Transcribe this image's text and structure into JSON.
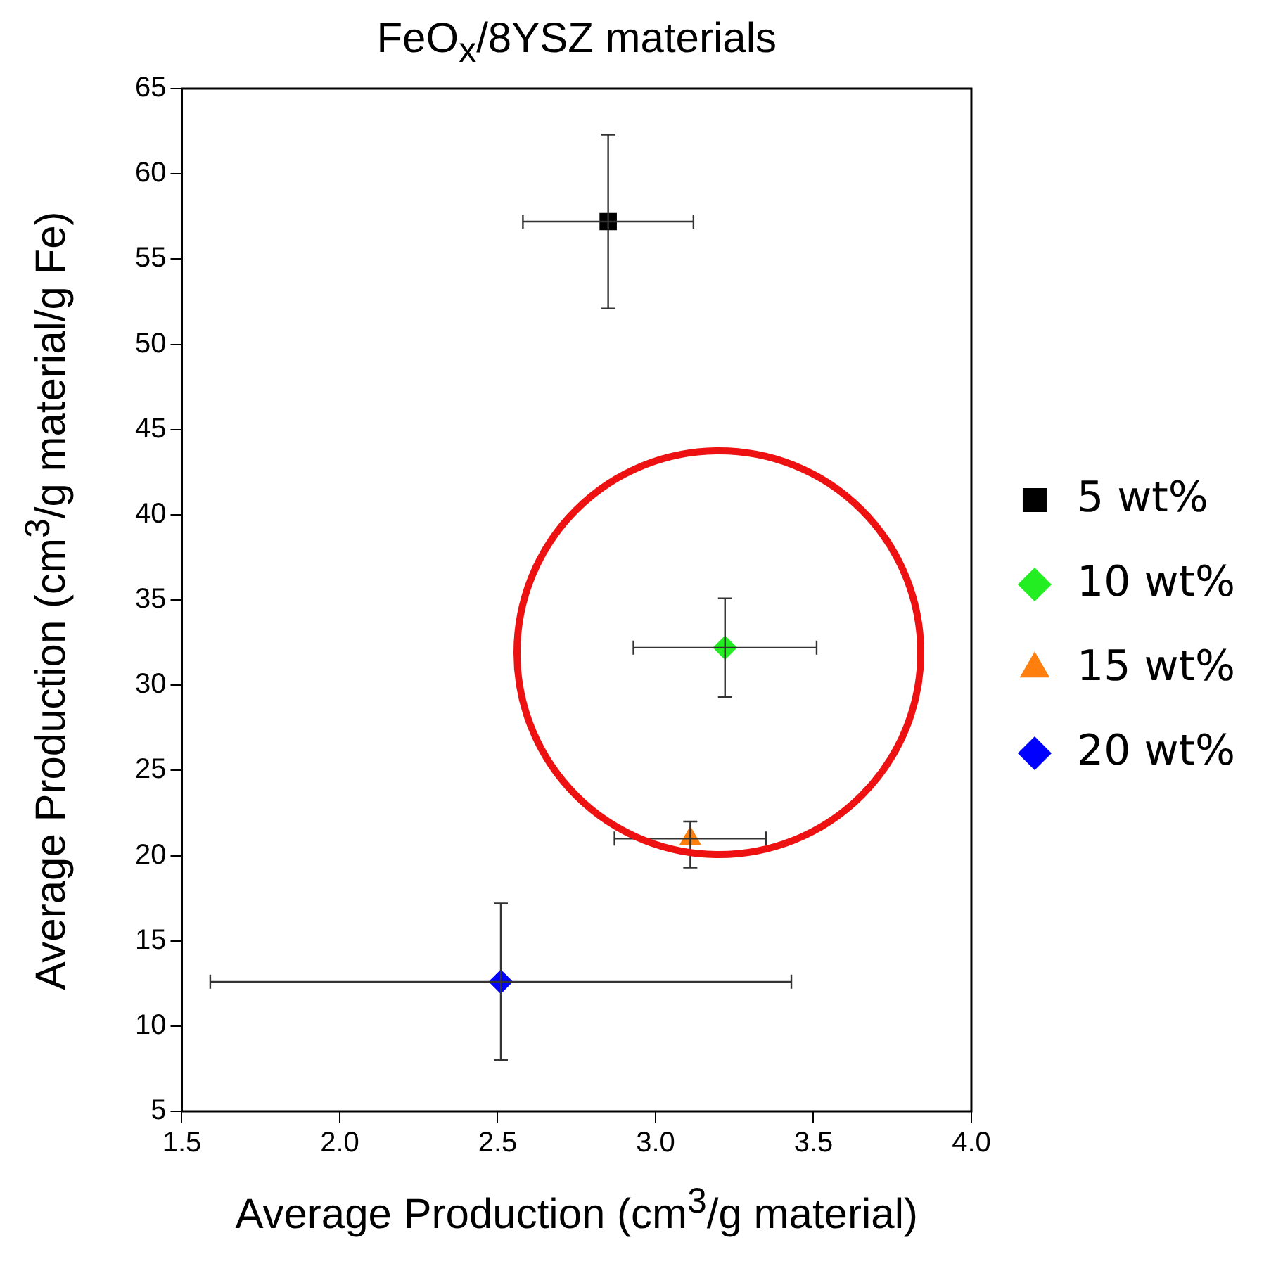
{
  "chart_data": {
    "type": "scatter",
    "title": "FeO$_{x}$/8YSZ materials",
    "xlabel": "Average Production (cm$^{3}$/g material)",
    "ylabel": "Average Production (cm$^{3}$/g material/g Fe)",
    "xlim": [
      1.5,
      4.0
    ],
    "xticks": [
      {
        "value": 1.5,
        "label": "1.5"
      },
      {
        "value": 2.0,
        "label": "2.0"
      },
      {
        "value": 2.5,
        "label": "2.5"
      },
      {
        "value": 3.0,
        "label": "3.0"
      },
      {
        "value": 3.5,
        "label": "3.5"
      },
      {
        "value": 4.0,
        "label": "4.0"
      }
    ],
    "ylim": [
      5,
      65
    ],
    "yticks": [
      5,
      10,
      15,
      20,
      25,
      30,
      35,
      40,
      45,
      50,
      55,
      60,
      65
    ],
    "grid": false,
    "legend": "right",
    "series": [
      {
        "name": "5 wt%",
        "color": "#000000",
        "marker": "square",
        "x": [
          2.85
        ],
        "values": [
          57.2
        ],
        "errors": [
          5.1
        ],
        "xerrors": [
          0.27
        ]
      },
      {
        "name": "10 wt%",
        "color": "#22ee22",
        "marker": "diamond",
        "x": [
          3.22
        ],
        "values": [
          32.2
        ],
        "errors": [
          2.9
        ],
        "xerrors": [
          0.29
        ]
      },
      {
        "name": "15 wt%",
        "color": "#ff7f0e",
        "marker": "triangle",
        "x": [
          3.11
        ],
        "values": [
          21.0
        ],
        "errors": [
          [
            19.3,
            22.0
          ]
        ],
        "xerrors": [
          0.24
        ]
      },
      {
        "name": "20 wt%",
        "color": "#0000ff",
        "marker": "diamond",
        "x": [
          2.51
        ],
        "values": [
          12.6
        ],
        "errors": [
          4.6
        ],
        "xerrors": [
          0.92
        ]
      }
    ]
  }
}
